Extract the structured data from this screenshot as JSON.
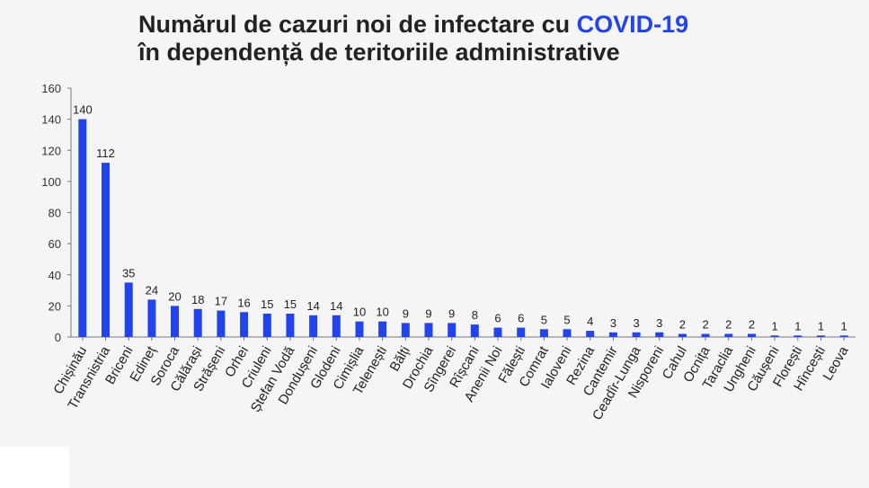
{
  "title": {
    "line1_prefix": "Numărul de cazuri noi de infectare cu",
    "line1_highlight": "COVID-19",
    "line2": "în dependență de teritoriile administrative"
  },
  "colors": {
    "bar": "#2244ee",
    "highlight": "#2244ee",
    "axis": "#777777"
  },
  "chart_data": {
    "type": "bar",
    "categories": [
      "Chișinău",
      "Transnistria",
      "Briceni",
      "Edineț",
      "Soroca",
      "Călărași",
      "Strășeni",
      "Orhei",
      "Criuleni",
      "Ștefan Vodă",
      "Dondușeni",
      "Glodeni",
      "Cimișlia",
      "Telenești",
      "Bălți",
      "Drochia",
      "Sîngerei",
      "Rîșcani",
      "Anenii Noi",
      "Fălești",
      "Comrat",
      "Ialoveni",
      "Rezina",
      "Cantemir",
      "Ceadîr-Lunga",
      "Nisporeni",
      "Cahul",
      "Ocnița",
      "Taraclia",
      "Ungheni",
      "Căușeni",
      "Florești",
      "Hîncești",
      "Leova"
    ],
    "values": [
      140,
      112,
      35,
      24,
      20,
      18,
      17,
      16,
      15,
      15,
      14,
      14,
      10,
      10,
      9,
      9,
      9,
      8,
      6,
      6,
      5,
      5,
      4,
      3,
      3,
      3,
      2,
      2,
      2,
      2,
      1,
      1,
      1,
      1
    ],
    "ylim": [
      0,
      160
    ],
    "yticks": [
      0,
      20,
      40,
      60,
      80,
      100,
      120,
      140,
      160
    ],
    "grid": false,
    "legend": "none"
  }
}
